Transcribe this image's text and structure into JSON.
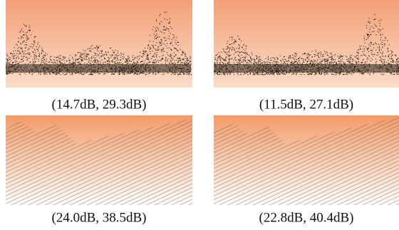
{
  "panels": [
    {
      "caption": "(14.7dB, 29.3dB)"
    },
    {
      "caption": "(11.5dB, 27.1dB)"
    },
    {
      "caption": "(24.0dB, 38.5dB)"
    },
    {
      "caption": "(22.8dB, 40.4dB)"
    }
  ]
}
